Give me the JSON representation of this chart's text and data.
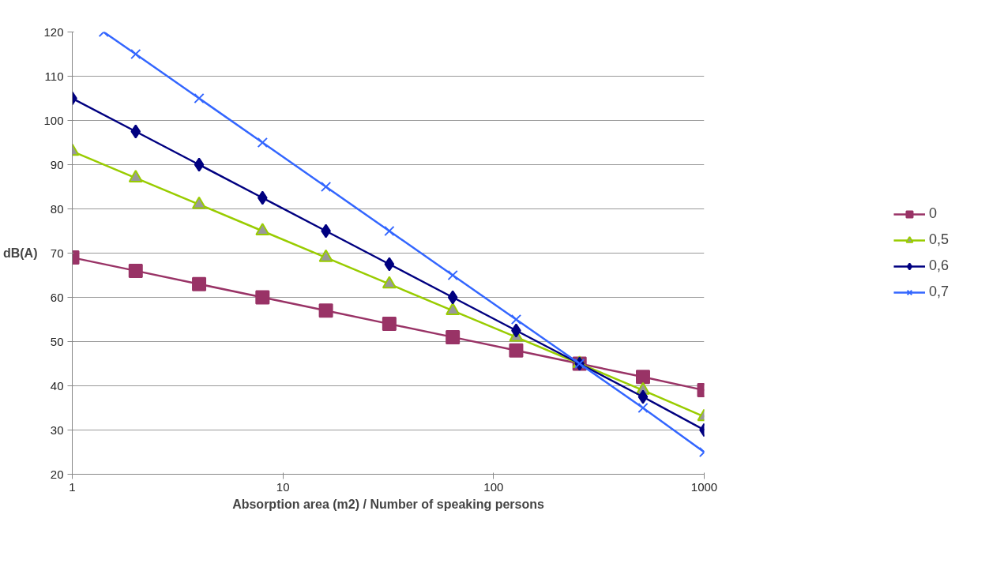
{
  "chart_data": {
    "type": "line",
    "xlabel": "Absorption area (m2) / Number of speaking persons",
    "ylabel": "dB(A)",
    "log": "x",
    "xlim": [
      1,
      1000
    ],
    "xticks": [
      1,
      10,
      100,
      1000
    ],
    "ylim": [
      20,
      120
    ],
    "yticks": [
      20,
      30,
      40,
      50,
      60,
      70,
      80,
      90,
      100,
      110,
      120
    ],
    "grid": "y",
    "legend": "right",
    "x": [
      1,
      2,
      4,
      8,
      16,
      32,
      64,
      128,
      256,
      512,
      1000
    ],
    "series": [
      {
        "name": "0",
        "color": "#993366",
        "marker": "square",
        "values": [
          69,
          66,
          63,
          60,
          57,
          54,
          51,
          48,
          45,
          42,
          39
        ]
      },
      {
        "name": "0,5",
        "color": "#99cc00",
        "marker": "triangle",
        "values": [
          93,
          87,
          81,
          75,
          69,
          63,
          57,
          51,
          45,
          39,
          33
        ]
      },
      {
        "name": "0,6",
        "color": "#000080",
        "marker": "diamond",
        "values": [
          105,
          97.5,
          90,
          82.5,
          75,
          67.5,
          60,
          52.5,
          45,
          37.5,
          30
        ]
      },
      {
        "name": "0,7",
        "color": "#3366ff",
        "marker": "cross",
        "x": [
          1.41,
          2,
          4,
          8,
          16,
          32,
          64,
          128,
          256,
          512,
          1000
        ],
        "values": [
          120,
          115,
          105,
          95,
          85,
          75,
          65,
          55,
          45,
          35,
          25
        ]
      }
    ]
  }
}
